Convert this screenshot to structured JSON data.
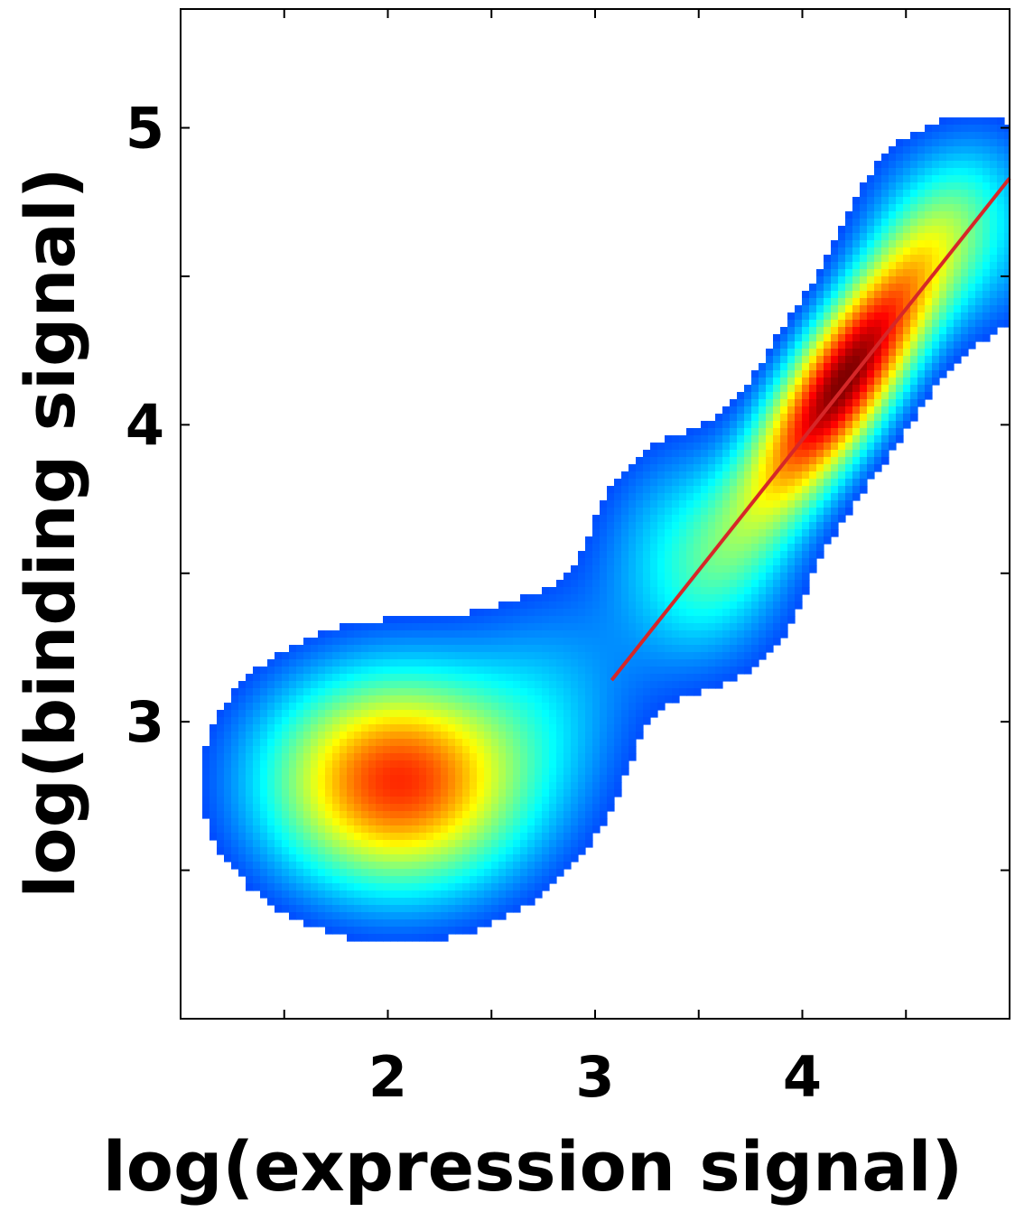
{
  "chart_data": {
    "type": "heatmap",
    "title": "",
    "xlabel": "log(expression signal)",
    "ylabel": "log(binding signal)",
    "xlim": [
      1.0,
      5.0
    ],
    "ylim": [
      2.0,
      5.4
    ],
    "x_ticks": [
      1.5,
      2,
      2.5,
      3,
      3.5,
      4,
      4.5
    ],
    "x_tick_labels": [
      "",
      "2",
      "",
      "3",
      "",
      "4",
      ""
    ],
    "y_ticks": [
      2.5,
      3,
      3.5,
      4,
      4.5,
      5
    ],
    "y_tick_labels": [
      "",
      "3",
      "",
      "4",
      "",
      "5"
    ],
    "grid": false,
    "legend": "none",
    "colormap": "jet",
    "colormap_stops": [
      "#00007f",
      "#0000ff",
      "#00ffff",
      "#ffff00",
      "#ff0000",
      "#7f0000"
    ],
    "density_peaks": [
      {
        "x": 4.2,
        "y": 4.15,
        "relative_density": 1.0
      },
      {
        "x": 2.05,
        "y": 2.8,
        "relative_density": 0.78
      }
    ],
    "density_cutoff": 0.06,
    "series": [
      {
        "type": "line",
        "color": "#d62728",
        "x": [
          3.08,
          5.0
        ],
        "y": [
          3.14,
          4.83
        ]
      }
    ]
  }
}
